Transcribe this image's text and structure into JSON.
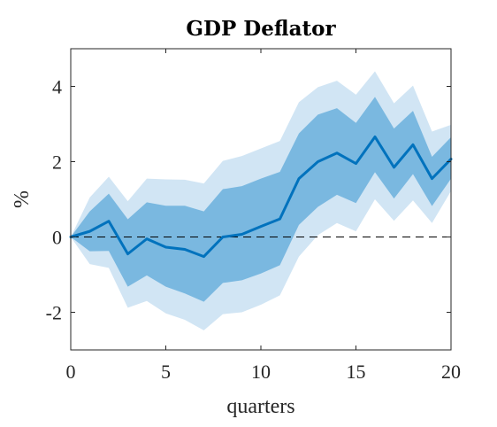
{
  "chart_data": {
    "type": "line",
    "title": "GDP Deflator",
    "xlabel": "quarters",
    "ylabel": "%",
    "xlim": [
      0,
      20
    ],
    "ylim": [
      -3,
      5
    ],
    "xticks": [
      0,
      5,
      10,
      15,
      20
    ],
    "yticks": [
      -2,
      0,
      2,
      4
    ],
    "x": [
      0,
      1,
      2,
      3,
      4,
      5,
      6,
      7,
      8,
      9,
      10,
      11,
      12,
      13,
      14,
      15,
      16,
      17,
      18,
      19,
      20
    ],
    "series": [
      {
        "values": [
          0,
          0.15,
          0.42,
          -0.45,
          -0.05,
          -0.27,
          -0.33,
          -0.52,
          0,
          0.07,
          0.28,
          0.48,
          1.55,
          2.0,
          2.23,
          1.95,
          2.66,
          1.85,
          2.45,
          1.55,
          2.07
        ],
        "color": "#0072BD"
      }
    ],
    "bands": [
      {
        "lower": [
          0,
          -0.72,
          -0.82,
          -1.88,
          -1.7,
          -2.03,
          -2.2,
          -2.48,
          -2.05,
          -2.0,
          -1.8,
          -1.55,
          -0.52,
          0.05,
          0.37,
          0.15,
          1.0,
          0.43,
          0.97,
          0.37,
          1.22
        ],
        "upper": [
          0,
          1.05,
          1.6,
          0.95,
          1.55,
          1.53,
          1.52,
          1.42,
          2.02,
          2.15,
          2.35,
          2.55,
          3.58,
          3.98,
          4.15,
          3.78,
          4.4,
          3.55,
          4.02,
          2.8,
          2.98
        ],
        "color": "#d1e5f4"
      },
      {
        "lower": [
          0,
          -0.38,
          -0.37,
          -1.32,
          -1.02,
          -1.32,
          -1.5,
          -1.72,
          -1.22,
          -1.15,
          -0.97,
          -0.75,
          0.32,
          0.8,
          1.12,
          0.9,
          1.72,
          1.02,
          1.67,
          0.82,
          1.55
        ],
        "upper": [
          0,
          0.68,
          1.15,
          0.47,
          0.92,
          0.83,
          0.83,
          0.68,
          1.27,
          1.35,
          1.55,
          1.73,
          2.75,
          3.25,
          3.42,
          3.03,
          3.72,
          2.88,
          3.35,
          2.13,
          2.65
        ],
        "color": "#7ab8e0"
      }
    ],
    "zero_line": {
      "y": 0,
      "style": "dashed",
      "color": "#000000"
    },
    "grid": false,
    "legend": false,
    "axis_color": "#262626"
  }
}
